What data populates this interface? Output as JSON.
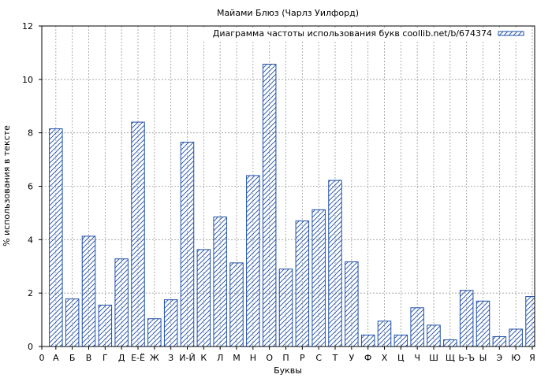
{
  "chart_data": {
    "type": "bar",
    "title": "Майами Блюз (Чарлз Уилфорд)",
    "xlabel": "Буквы",
    "ylabel": "% использования в тексте",
    "legend": {
      "label": "Диаграмма частоты использования букв coollib.net/b/674374",
      "placement": "top-right"
    },
    "categories": [
      "А",
      "Б",
      "В",
      "Г",
      "Д",
      "Е-Ё",
      "Ж",
      "З",
      "И-Й",
      "К",
      "Л",
      "М",
      "Н",
      "О",
      "П",
      "Р",
      "С",
      "Т",
      "У",
      "Ф",
      "Х",
      "Ц",
      "Ч",
      "Ш",
      "Щ",
      "Ь-Ъ",
      "Ы",
      "Э",
      "Ю",
      "Я"
    ],
    "values": [
      8.15,
      1.78,
      4.13,
      1.55,
      3.28,
      8.4,
      1.04,
      1.75,
      7.65,
      3.63,
      4.85,
      3.13,
      6.4,
      10.57,
      2.9,
      4.7,
      5.12,
      6.22,
      3.17,
      0.43,
      0.95,
      0.43,
      1.45,
      0.8,
      0.25,
      2.1,
      1.7,
      0.37,
      0.65,
      1.87
    ],
    "x_origin_label": "0",
    "ylim": [
      0,
      12
    ],
    "yticks": [
      0,
      2,
      4,
      6,
      8,
      10,
      12
    ],
    "grid": true,
    "colors": {
      "bar_stroke": "#1f4fa8",
      "hatch": "#1f4fa8",
      "grid": "#9a9a9a",
      "frame": "#000000"
    }
  }
}
